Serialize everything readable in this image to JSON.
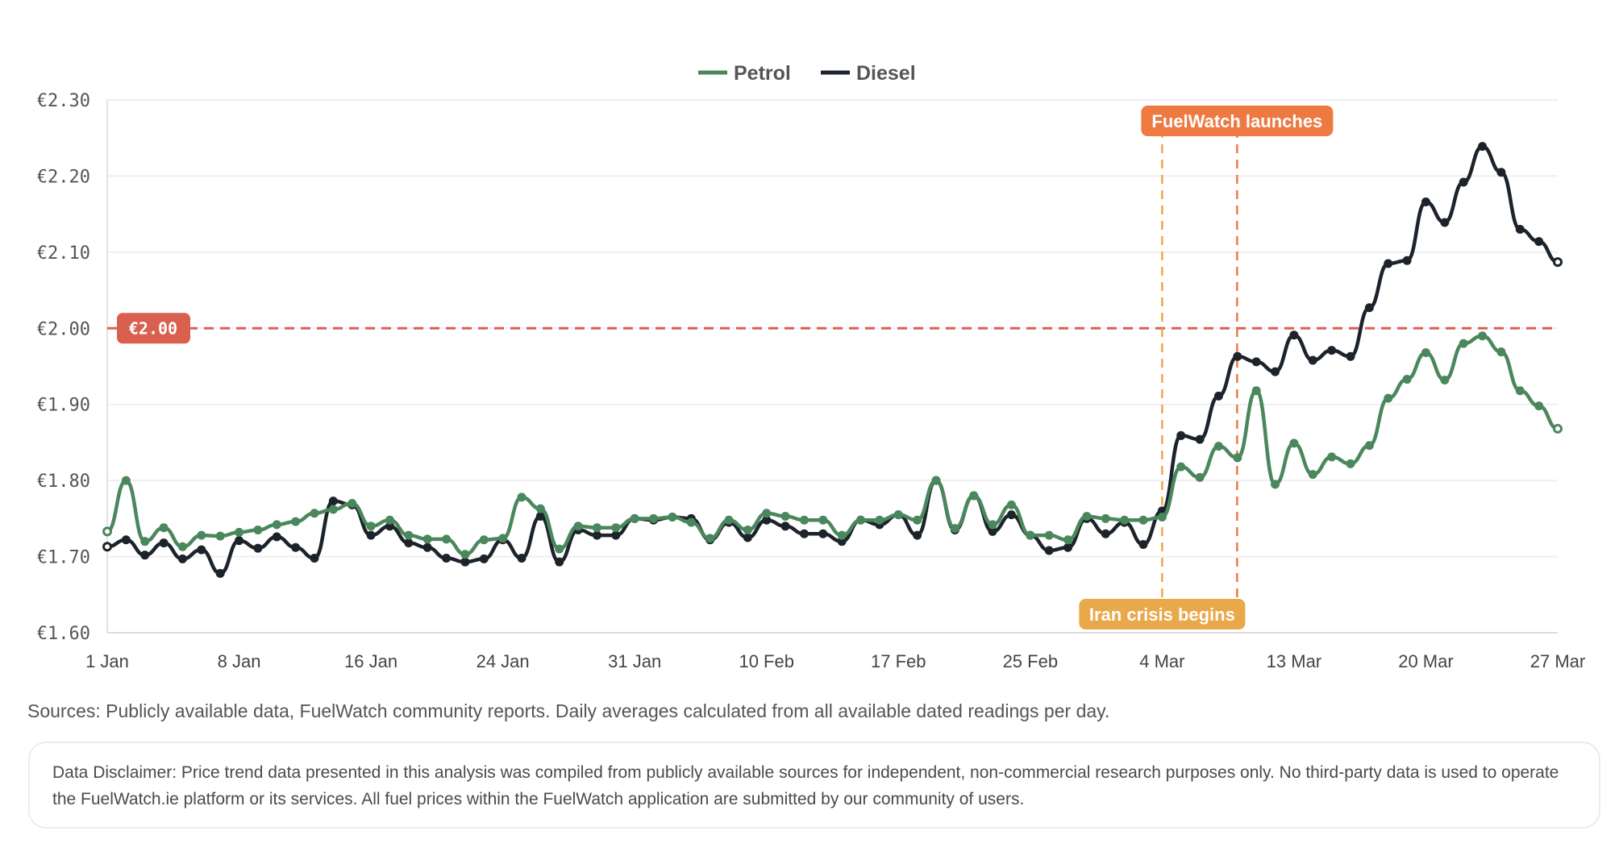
{
  "chart_data": {
    "type": "line",
    "legend": {
      "position": "top-center",
      "entries": [
        "Petrol",
        "Diesel"
      ]
    },
    "x_tick_labels": [
      "1 Jan",
      "8 Jan",
      "16 Jan",
      "24 Jan",
      "31 Jan",
      "10 Feb",
      "17 Feb",
      "25 Feb",
      "4 Mar",
      "13 Mar",
      "20 Mar",
      "27 Mar"
    ],
    "y_tick_labels": [
      "€2.30",
      "€2.20",
      "€2.10",
      "€2.00",
      "€1.90",
      "€1.80",
      "€1.70",
      "€1.60"
    ],
    "ylim": [
      1.6,
      2.3
    ],
    "grid": true,
    "series": [
      {
        "name": "Petrol",
        "color": "#4a875c",
        "values": [
          1.733,
          1.8,
          1.72,
          1.738,
          1.713,
          1.728,
          1.727,
          1.732,
          1.735,
          1.742,
          1.746,
          1.757,
          1.762,
          1.77,
          1.74,
          1.748,
          1.728,
          1.723,
          1.723,
          1.703,
          1.722,
          1.724,
          1.778,
          1.763,
          1.71,
          1.74,
          1.738,
          1.738,
          1.75,
          1.75,
          1.752,
          1.745,
          1.724,
          1.748,
          1.735,
          1.757,
          1.753,
          1.748,
          1.748,
          1.728,
          1.748,
          1.748,
          1.755,
          1.748,
          1.8,
          1.737,
          1.78,
          1.742,
          1.768,
          1.728,
          1.728,
          1.722,
          1.753,
          1.75,
          1.748,
          1.748,
          1.752,
          1.818,
          1.804,
          1.845,
          1.83,
          1.918,
          1.795,
          1.849,
          1.808,
          1.831,
          1.822,
          1.846,
          1.908,
          1.933,
          1.968,
          1.932,
          1.98,
          1.99,
          1.969,
          1.918,
          1.898,
          1.868
        ]
      },
      {
        "name": "Diesel",
        "color": "#1c232b",
        "values": [
          1.713,
          1.722,
          1.702,
          1.718,
          1.697,
          1.709,
          1.678,
          1.721,
          1.711,
          1.726,
          1.712,
          1.698,
          1.773,
          1.768,
          1.728,
          1.74,
          1.718,
          1.712,
          1.698,
          1.693,
          1.697,
          1.722,
          1.698,
          1.753,
          1.693,
          1.735,
          1.728,
          1.728,
          1.75,
          1.748,
          1.752,
          1.75,
          1.722,
          1.745,
          1.725,
          1.748,
          1.74,
          1.73,
          1.73,
          1.72,
          1.748,
          1.742,
          1.755,
          1.728,
          1.8,
          1.735,
          1.78,
          1.733,
          1.755,
          1.728,
          1.708,
          1.712,
          1.75,
          1.73,
          1.745,
          1.716,
          1.76,
          1.859,
          1.854,
          1.911,
          1.963,
          1.956,
          1.943,
          1.991,
          1.958,
          1.971,
          1.963,
          2.027,
          2.085,
          2.089,
          2.166,
          2.139,
          2.192,
          2.239,
          2.205,
          2.13,
          2.114,
          2.087
        ]
      }
    ],
    "annotations": [
      {
        "type": "hline",
        "value": 2.0,
        "label": "€2.00",
        "color": "#d9604f"
      },
      {
        "type": "vline",
        "at_tick": "4 Mar",
        "label": "Iran crisis begins",
        "color": "#e9a84a"
      },
      {
        "type": "vline",
        "label": "FuelWatch launches",
        "color": "#ee7a42"
      }
    ]
  },
  "footer": {
    "sources": "Sources: Publicly available data, FuelWatch community reports. Daily averages calculated from all available dated readings per day.",
    "disclaimer": "Data Disclaimer: Price trend data presented in this analysis was compiled from publicly available sources for independent, non-commercial research purposes only. No third-party data is used to operate the FuelWatch.ie platform or its services. All fuel prices within the FuelWatch application are submitted by our community of users."
  }
}
